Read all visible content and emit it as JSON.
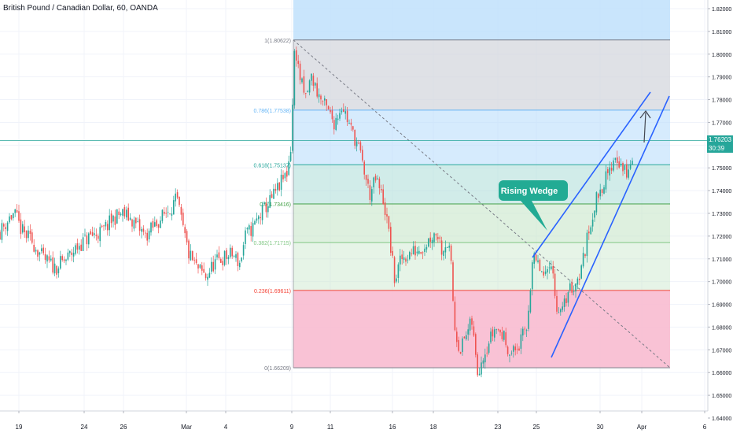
{
  "chart_title": "British Pound / Canadian Dollar, 60, OANDA",
  "last_price": "1.76203",
  "countdown": "30:39",
  "annotation": "Rising Wedge",
  "colors": {
    "up": "#26a69a",
    "down": "#ef5350",
    "wedge": "#2962ff",
    "callout": "#22ab94"
  },
  "chart_data": {
    "type": "candlestick",
    "ylim": [
      1.64,
      1.822
    ],
    "y_ticks": [
      "1.82000",
      "1.81000",
      "1.80000",
      "1.79000",
      "1.78000",
      "1.77000",
      "1.76000",
      "1.75000",
      "1.74000",
      "1.73000",
      "1.72000",
      "1.71000",
      "1.70000",
      "1.69000",
      "1.68000",
      "1.67000",
      "1.66000",
      "1.65000",
      "1.64000"
    ],
    "x_ticks": [
      "19",
      "24",
      "26",
      "Mar",
      "4",
      "9",
      "11",
      "16",
      "18",
      "23",
      "25",
      "30",
      "Apr",
      "6"
    ],
    "fib_levels": [
      {
        "label": "1(1.80622)",
        "value": 1.80622
      },
      {
        "label": "0.786(1.77538)",
        "value": 1.77538
      },
      {
        "label": "0.618(1.75137)",
        "value": 1.75137
      },
      {
        "label": "0.5(1.73416)",
        "value": 1.73416
      },
      {
        "label": "0.382(1.71715)",
        "value": 1.71715
      },
      {
        "label": "0.236(1.69611)",
        "value": 1.69611
      },
      {
        "label": "0(1.66209)",
        "value": 1.66209
      }
    ],
    "price_path": [
      [
        0,
        1.722
      ],
      [
        12,
        1.728
      ],
      [
        18,
        1.73
      ],
      [
        28,
        1.722
      ],
      [
        40,
        1.718
      ],
      [
        55,
        1.71
      ],
      [
        70,
        1.706
      ],
      [
        85,
        1.71
      ],
      [
        100,
        1.716
      ],
      [
        115,
        1.72
      ],
      [
        130,
        1.722
      ],
      [
        145,
        1.728
      ],
      [
        155,
        1.73
      ],
      [
        165,
        1.728
      ],
      [
        175,
        1.724
      ],
      [
        185,
        1.72
      ],
      [
        195,
        1.724
      ],
      [
        205,
        1.728
      ],
      [
        215,
        1.732
      ],
      [
        225,
        1.736
      ],
      [
        232,
        1.724
      ],
      [
        240,
        1.712
      ],
      [
        250,
        1.706
      ],
      [
        262,
        1.702
      ],
      [
        272,
        1.708
      ],
      [
        282,
        1.71
      ],
      [
        295,
        1.712
      ],
      [
        305,
        1.708
      ],
      [
        312,
        1.72
      ],
      [
        322,
        1.724
      ],
      [
        332,
        1.73
      ],
      [
        345,
        1.736
      ],
      [
        355,
        1.742
      ],
      [
        365,
        1.748
      ],
      [
        370,
        1.76
      ],
      [
        375,
        1.805
      ],
      [
        380,
        1.792
      ],
      [
        388,
        1.78
      ],
      [
        396,
        1.79
      ],
      [
        405,
        1.782
      ],
      [
        415,
        1.776
      ],
      [
        425,
        1.77
      ],
      [
        435,
        1.778
      ],
      [
        445,
        1.768
      ],
      [
        455,
        1.76
      ],
      [
        462,
        1.75
      ],
      [
        470,
        1.738
      ],
      [
        478,
        1.745
      ],
      [
        488,
        1.735
      ],
      [
        495,
        1.72
      ],
      [
        502,
        1.7
      ],
      [
        510,
        1.71
      ],
      [
        520,
        1.712
      ],
      [
        530,
        1.714
      ],
      [
        540,
        1.716
      ],
      [
        548,
        1.72
      ],
      [
        556,
        1.722
      ],
      [
        562,
        1.714
      ],
      [
        568,
        1.718
      ],
      [
        573,
        1.71
      ],
      [
        578,
        1.68
      ],
      [
        585,
        1.67
      ],
      [
        592,
        1.676
      ],
      [
        600,
        1.682
      ],
      [
        607,
        1.66
      ],
      [
        614,
        1.668
      ],
      [
        622,
        1.674
      ],
      [
        630,
        1.68
      ],
      [
        640,
        1.676
      ],
      [
        650,
        1.668
      ],
      [
        660,
        1.672
      ],
      [
        670,
        1.68
      ],
      [
        677,
        1.71
      ],
      [
        686,
        1.706
      ],
      [
        693,
        1.7
      ],
      [
        700,
        1.712
      ],
      [
        707,
        1.69
      ],
      [
        715,
        1.686
      ],
      [
        722,
        1.696
      ],
      [
        730,
        1.698
      ],
      [
        738,
        1.704
      ],
      [
        745,
        1.716
      ],
      [
        752,
        1.728
      ],
      [
        760,
        1.738
      ],
      [
        768,
        1.744
      ],
      [
        775,
        1.748
      ],
      [
        782,
        1.756
      ],
      [
        788,
        1.752
      ],
      [
        795,
        1.748
      ],
      [
        800,
        1.748
      ],
      [
        806,
        1.758
      ]
    ]
  }
}
